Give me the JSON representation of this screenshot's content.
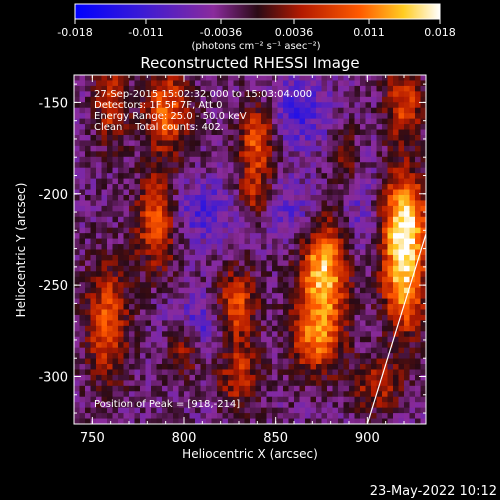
{
  "colorbar": {
    "ticks": [
      "-0.018",
      "-0.011",
      "-0.0036",
      "0.0036",
      "0.011",
      "0.018"
    ],
    "units": "(photons cm⁻² s⁻¹ asec⁻²)"
  },
  "plot": {
    "title": "Reconstructed RHESSI Image",
    "info_lines": [
      "27-Sep-2015 15:02:32.000 to 15:03:04.000",
      "Detectors: 1F 5F 7F, Att 0",
      "Energy Range: 25.0 - 50.0 keV",
      "Clean    Total counts: 402."
    ],
    "peak_label": "Position of Peak = [918,-214]"
  },
  "footer": {
    "date": "23-May-2022 10:12"
  },
  "chart_data": {
    "type": "heatmap",
    "title": "Reconstructed RHESSI Image",
    "xlabel": "Heliocentric X (arcsec)",
    "ylabel": "Heliocentric Y (arcsec)",
    "xlim": [
      740,
      932
    ],
    "ylim": [
      -326,
      -135
    ],
    "xticks": [
      750,
      800,
      850,
      900
    ],
    "yticks": [
      -150,
      -200,
      -250,
      -300
    ],
    "colorbar_range": [
      -0.018,
      0.018
    ],
    "colormap": "blue-purple-red-yellow-white",
    "peak": [
      918,
      -214
    ],
    "limb_line": [
      [
        900,
        -326
      ],
      [
        932,
        -222
      ]
    ],
    "blobs": [
      {
        "x": 920,
        "y": -214,
        "sx": 9,
        "sy": 18,
        "amp": 1.0
      },
      {
        "x": 920,
        "y": -250,
        "sx": 8,
        "sy": 20,
        "amp": 0.85
      },
      {
        "x": 876,
        "y": -243,
        "sx": 9,
        "sy": 20,
        "amp": 1.0
      },
      {
        "x": 872,
        "y": -280,
        "sx": 10,
        "sy": 14,
        "amp": 0.65
      },
      {
        "x": 840,
        "y": -170,
        "sx": 7,
        "sy": 14,
        "amp": 0.7
      },
      {
        "x": 838,
        "y": -200,
        "sx": 6,
        "sy": 10,
        "amp": 0.45
      },
      {
        "x": 828,
        "y": -262,
        "sx": 8,
        "sy": 14,
        "amp": 0.7
      },
      {
        "x": 830,
        "y": -300,
        "sx": 8,
        "sy": 12,
        "amp": 0.5
      },
      {
        "x": 790,
        "y": -155,
        "sx": 9,
        "sy": 16,
        "amp": 0.7
      },
      {
        "x": 785,
        "y": -215,
        "sx": 8,
        "sy": 18,
        "amp": 0.7
      },
      {
        "x": 760,
        "y": -150,
        "sx": 6,
        "sy": 16,
        "amp": 0.55
      },
      {
        "x": 758,
        "y": -270,
        "sx": 8,
        "sy": 22,
        "amp": 0.65
      },
      {
        "x": 800,
        "y": -285,
        "sx": 6,
        "sy": 10,
        "amp": 0.45
      },
      {
        "x": 920,
        "y": -150,
        "sx": 7,
        "sy": 16,
        "amp": 0.6
      },
      {
        "x": 888,
        "y": -180,
        "sx": 5,
        "sy": 12,
        "amp": 0.35
      },
      {
        "x": 905,
        "y": -305,
        "sx": 10,
        "sy": 10,
        "amp": 0.45
      },
      {
        "x": 810,
        "y": -210,
        "sx": 14,
        "sy": 12,
        "amp": -0.35
      },
      {
        "x": 810,
        "y": -270,
        "sx": 12,
        "sy": 12,
        "amp": -0.35
      },
      {
        "x": 862,
        "y": -155,
        "sx": 12,
        "sy": 14,
        "amp": -0.4
      },
      {
        "x": 860,
        "y": -210,
        "sx": 10,
        "sy": 12,
        "amp": -0.3
      },
      {
        "x": 898,
        "y": -210,
        "sx": 8,
        "sy": 18,
        "amp": -0.25
      }
    ]
  }
}
